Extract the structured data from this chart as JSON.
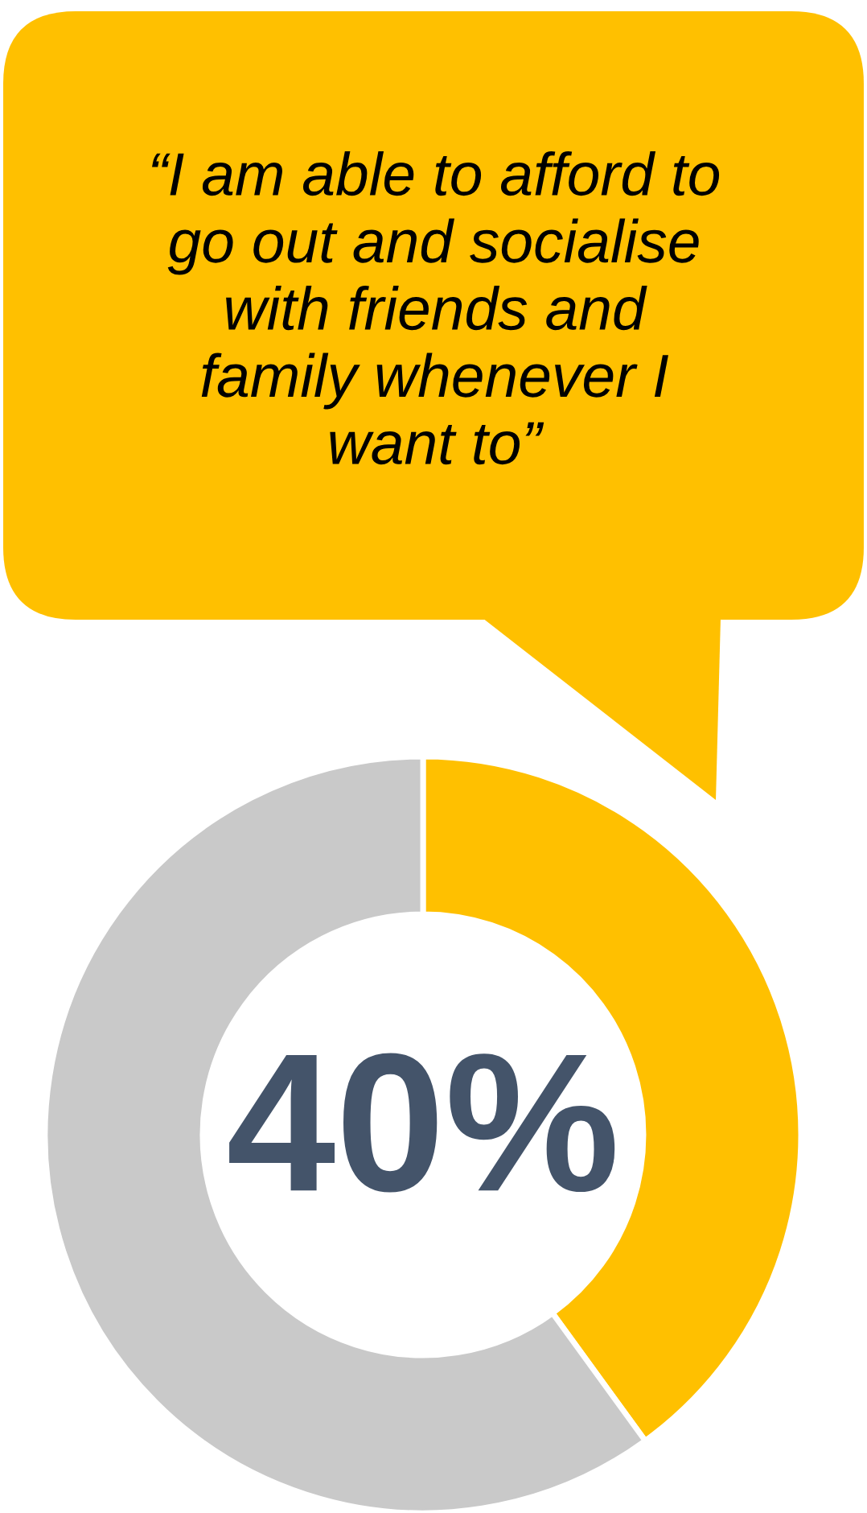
{
  "chart_data": {
    "type": "donut",
    "title": "“I am able to afford to\ngo out and socialise\nwith friends and\nfamily whenever I\nwant to”",
    "categories": [
      null,
      null
    ],
    "values": [
      40,
      60
    ],
    "colors": [
      "#ffc000",
      "#c9c9c9"
    ],
    "value_labels": [
      "40%",
      null
    ]
  }
}
